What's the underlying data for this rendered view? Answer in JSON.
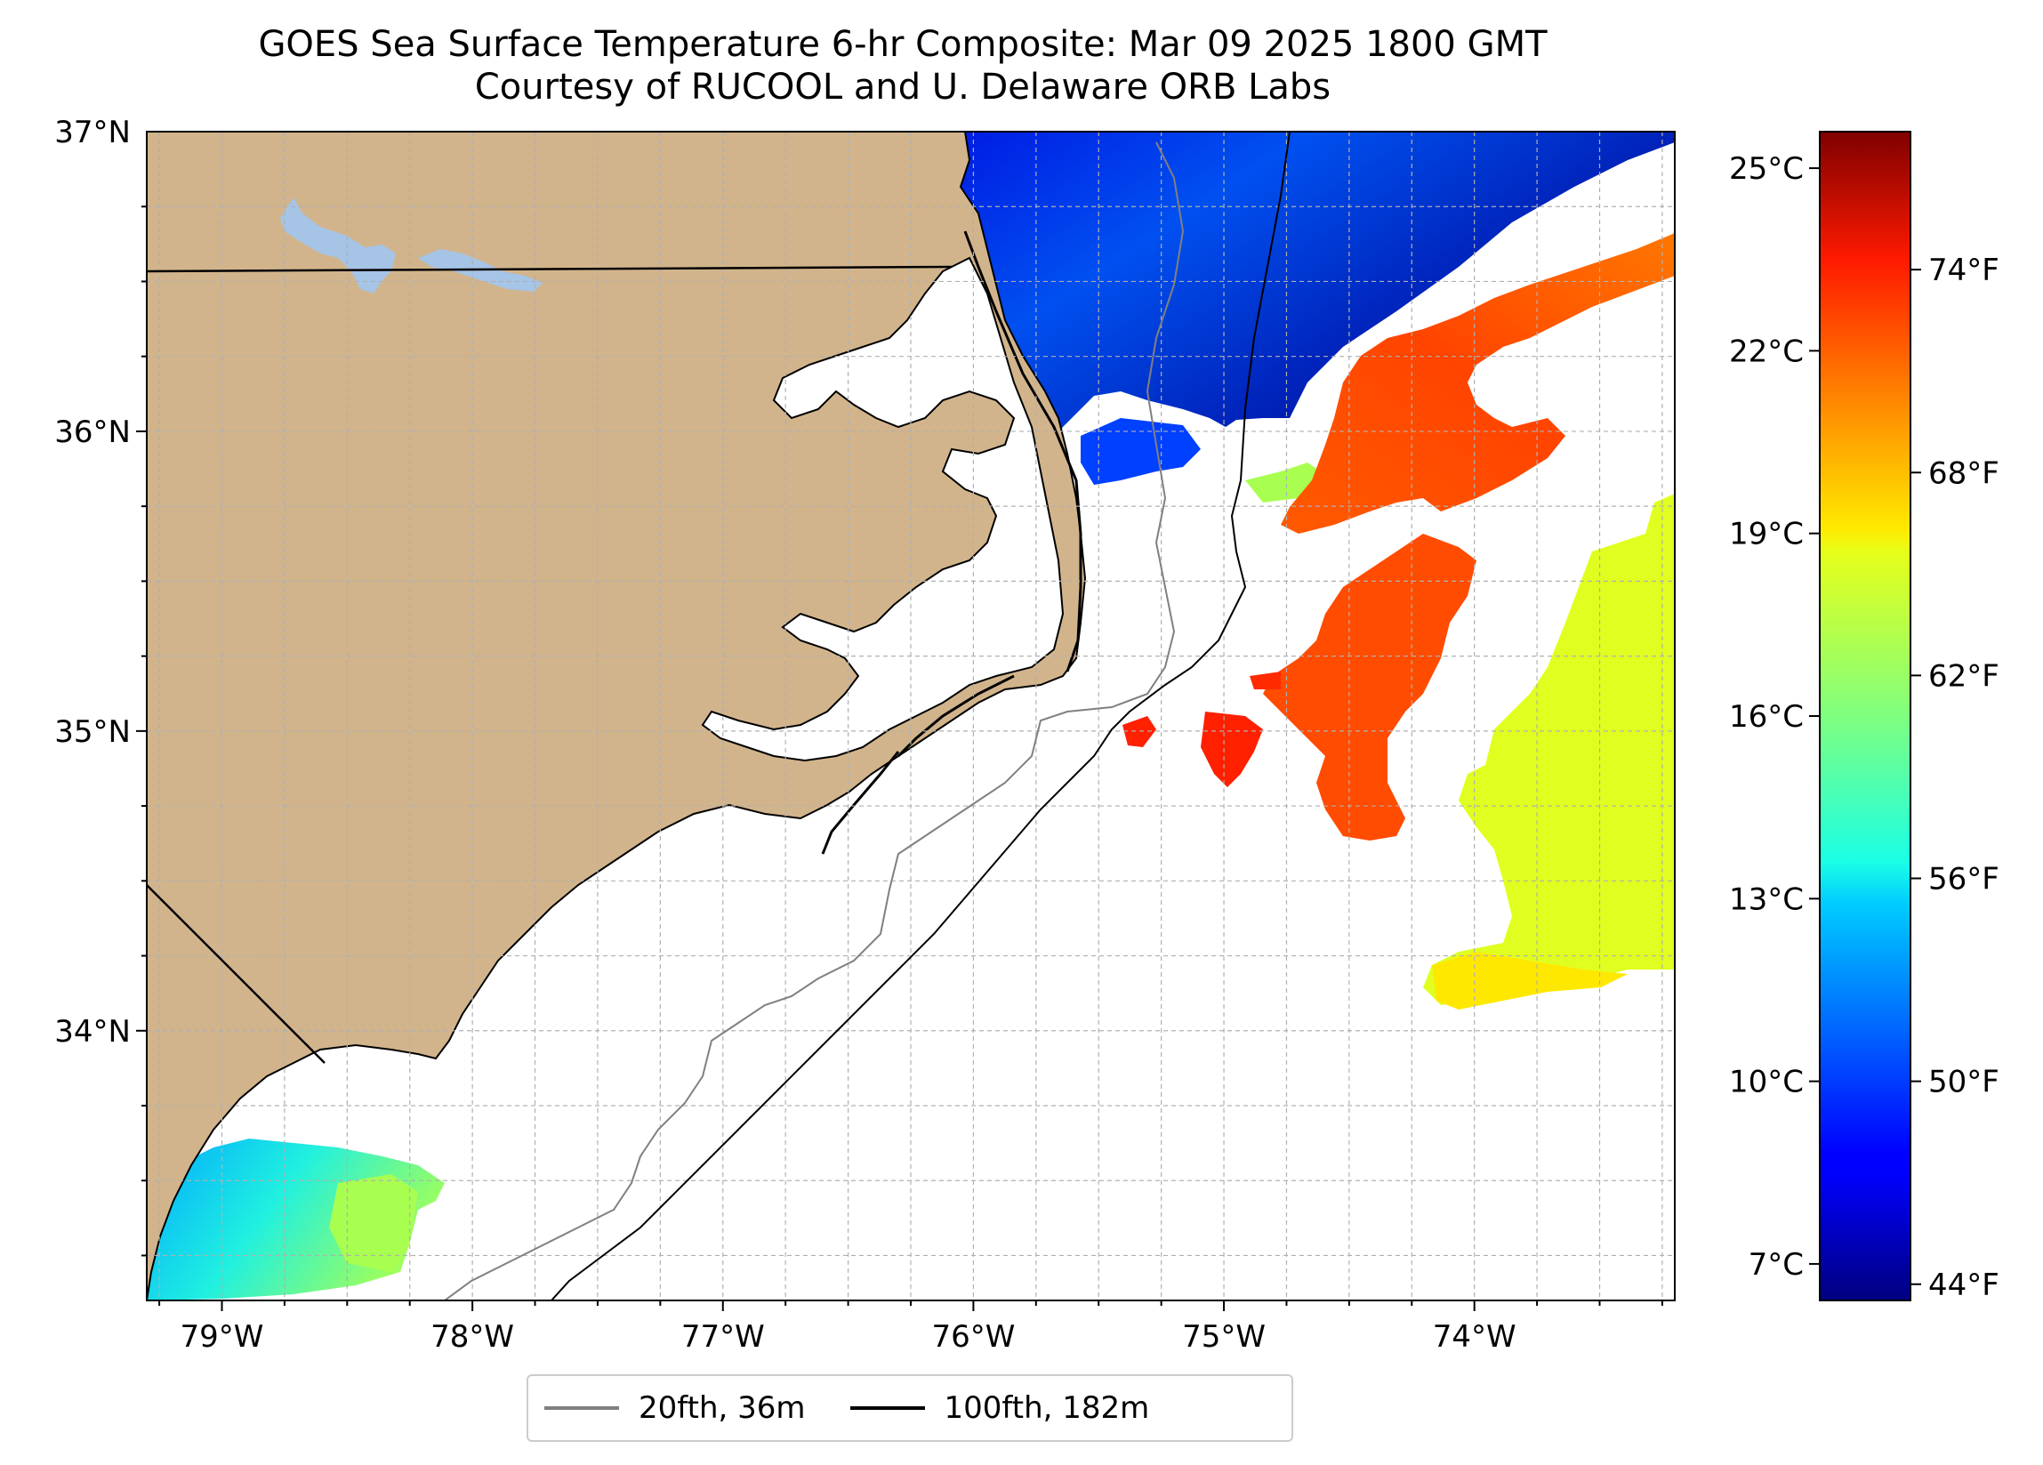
{
  "title": {
    "line1": "GOES Sea Surface Temperature 6-hr Composite: Mar 09 2025 1800 GMT",
    "line2": "Courtesy of RUCOOL and U. Delaware ORB Labs"
  },
  "map": {
    "lon_range": [
      -79.3,
      -73.2
    ],
    "lat_range": [
      33.1,
      37.0
    ],
    "lon_ticks": [
      {
        "value": -79,
        "label": "79°W"
      },
      {
        "value": -78,
        "label": "78°W"
      },
      {
        "value": -77,
        "label": "77°W"
      },
      {
        "value": -76,
        "label": "76°W"
      },
      {
        "value": -75,
        "label": "75°W"
      },
      {
        "value": -74,
        "label": "74°W"
      }
    ],
    "lat_ticks": [
      {
        "value": 34,
        "label": "34°N"
      },
      {
        "value": 35,
        "label": "35°N"
      },
      {
        "value": 36,
        "label": "36°N"
      },
      {
        "value": 37,
        "label": "37°N"
      }
    ],
    "grid": true,
    "colors": {
      "land": "#d2b48c",
      "lakes": "#a5c4e6",
      "contour_20fth": "#808080",
      "contour_100fth": "#000000"
    }
  },
  "colorbar": {
    "range_c": [
      6.4,
      25.6
    ],
    "celsius_ticks": [
      {
        "value": 7,
        "label": "7°C"
      },
      {
        "value": 10,
        "label": "10°C"
      },
      {
        "value": 13,
        "label": "13°C"
      },
      {
        "value": 16,
        "label": "16°C"
      },
      {
        "value": 19,
        "label": "19°C"
      },
      {
        "value": 22,
        "label": "22°C"
      },
      {
        "value": 25,
        "label": "25°C"
      }
    ],
    "fahrenheit_ticks": [
      {
        "value": 44,
        "label": "44°F"
      },
      {
        "value": 50,
        "label": "50°F"
      },
      {
        "value": 56,
        "label": "56°F"
      },
      {
        "value": 62,
        "label": "62°F"
      },
      {
        "value": 68,
        "label": "68°F"
      },
      {
        "value": 74,
        "label": "74°F"
      }
    ],
    "colormap": "jet"
  },
  "legend": {
    "items": [
      {
        "label": "20fth, 36m",
        "color": "#808080"
      },
      {
        "label": "100fth, 182m",
        "color": "#000000"
      }
    ]
  }
}
